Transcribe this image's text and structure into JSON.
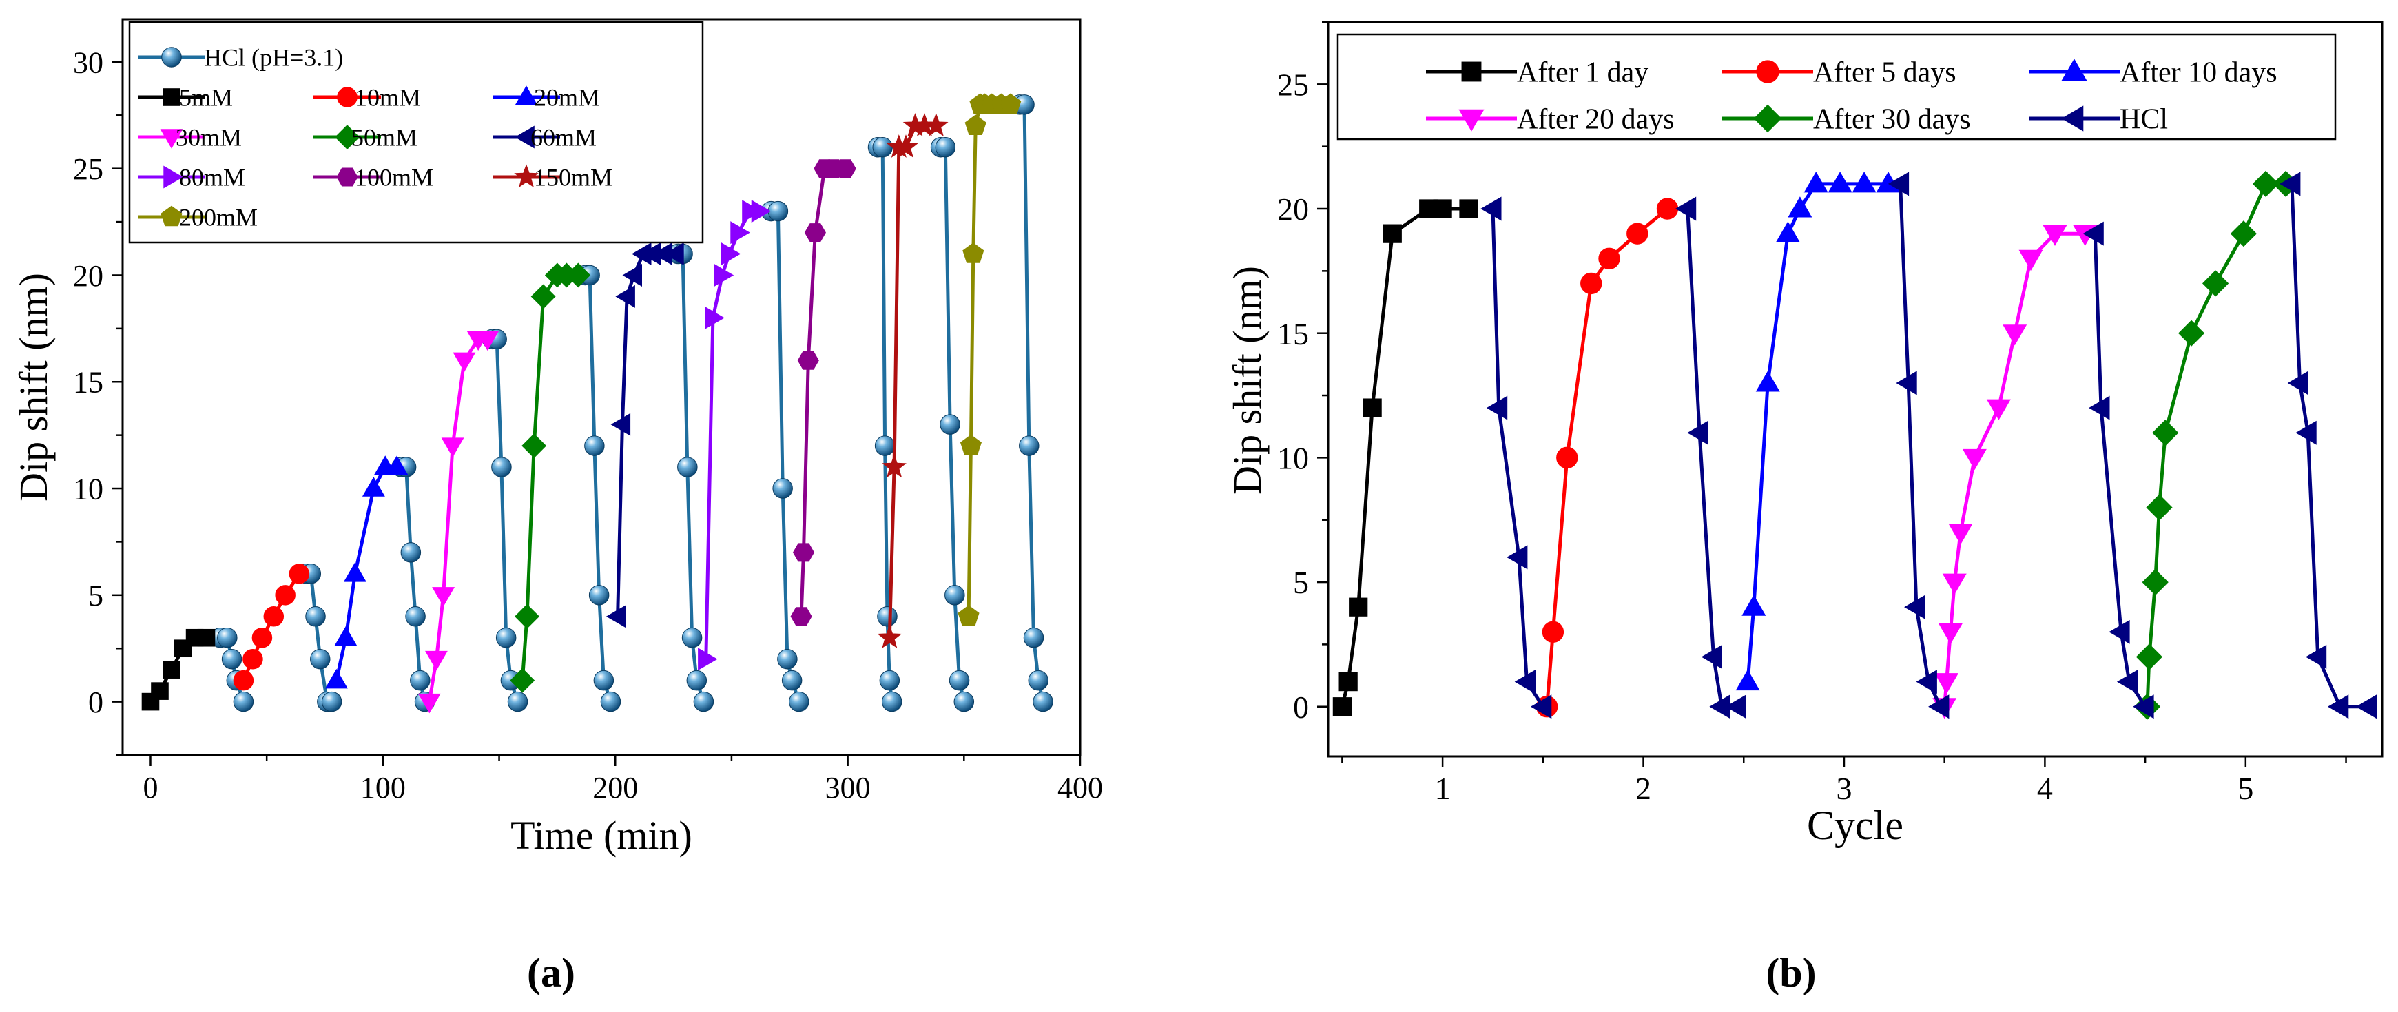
{
  "chart_data": [
    {
      "panel": "a",
      "type": "line",
      "panel_label": "(a)",
      "xlabel": "Time (min)",
      "ylabel": "Dip shift (nm)",
      "xlim": [
        -12,
        400
      ],
      "ylim": [
        -2.5,
        32
      ],
      "xticks": [
        0,
        100,
        200,
        300,
        400
      ],
      "yticks": [
        0,
        5,
        10,
        15,
        20,
        25,
        30
      ],
      "xticklabels": [
        "0",
        "100",
        "200",
        "300",
        "400"
      ],
      "yticklabels": [
        "0",
        "5",
        "10",
        "15",
        "20",
        "25",
        "30"
      ],
      "legend_position": "top-left",
      "series": [
        {
          "name": "HCl (pH=3.1)",
          "color": "#1f6e9e",
          "marker": "ball",
          "segments": [
            {
              "x": [
                30,
                33,
                35,
                37,
                40
              ],
              "y": [
                3,
                3,
                2,
                1,
                0
              ]
            },
            {
              "x": [
                67,
                69,
                71,
                73,
                76,
                78
              ],
              "y": [
                6,
                6,
                4,
                2,
                0,
                0
              ]
            },
            {
              "x": [
                108,
                110,
                112,
                114,
                116,
                118
              ],
              "y": [
                11,
                11,
                7,
                4,
                1,
                0
              ]
            },
            {
              "x": [
                147,
                149,
                151,
                153,
                155,
                158
              ],
              "y": [
                17,
                17,
                11,
                3,
                1,
                0
              ]
            },
            {
              "x": [
                187,
                189,
                191,
                193,
                195,
                198
              ],
              "y": [
                20,
                20,
                12,
                5,
                1,
                0
              ]
            },
            {
              "x": [
                227,
                229,
                231,
                233,
                235,
                238
              ],
              "y": [
                21,
                21,
                11,
                3,
                1,
                0
              ]
            },
            {
              "x": [
                267,
                270,
                272,
                274,
                276,
                279
              ],
              "y": [
                23,
                23,
                10,
                2,
                1,
                0
              ]
            },
            {
              "x": [
                313,
                315,
                316,
                317,
                318,
                319
              ],
              "y": [
                26,
                26,
                12,
                4,
                1,
                0
              ]
            },
            {
              "x": [
                340,
                342,
                344,
                346,
                348,
                350
              ],
              "y": [
                26,
                26,
                13,
                5,
                1,
                0
              ]
            },
            {
              "x": [
                374,
                376,
                378,
                380,
                382,
                384
              ],
              "y": [
                28,
                28,
                12,
                3,
                1,
                0
              ]
            }
          ]
        },
        {
          "name": "5mM",
          "color": "#000000",
          "marker": "square",
          "segments": [
            {
              "x": [
                0,
                4,
                9,
                14,
                19,
                24
              ],
              "y": [
                0,
                0.5,
                1.5,
                2.5,
                3,
                3
              ]
            }
          ]
        },
        {
          "name": "10mM",
          "color": "#ff0000",
          "marker": "circle",
          "segments": [
            {
              "x": [
                40,
                44,
                48,
                53,
                58,
                64
              ],
              "y": [
                1,
                2,
                3,
                4,
                5,
                6
              ]
            }
          ]
        },
        {
          "name": "20mM",
          "color": "#0000ff",
          "marker": "triangle-up",
          "segments": [
            {
              "x": [
                80,
                84,
                88,
                96,
                101,
                106
              ],
              "y": [
                1,
                3,
                6,
                10,
                11,
                11
              ]
            }
          ]
        },
        {
          "name": "30mM",
          "color": "#ff00ff",
          "marker": "triangle-down",
          "segments": [
            {
              "x": [
                120,
                123,
                126,
                130,
                135,
                141,
                145
              ],
              "y": [
                0,
                2,
                5,
                12,
                16,
                17,
                17
              ]
            }
          ]
        },
        {
          "name": "50mM",
          "color": "#008000",
          "marker": "diamond",
          "segments": [
            {
              "x": [
                160,
                162,
                165,
                169,
                175,
                179,
                184
              ],
              "y": [
                1,
                4,
                12,
                19,
                20,
                20,
                20
              ]
            }
          ]
        },
        {
          "name": "60mM",
          "color": "#000080",
          "marker": "triangle-left",
          "segments": [
            {
              "x": [
                201,
                203,
                205,
                208,
                212,
                216,
                221,
                226
              ],
              "y": [
                4,
                13,
                19,
                20,
                21,
                21,
                21,
                21
              ]
            }
          ]
        },
        {
          "name": "80mM",
          "color": "#8b00ff",
          "marker": "triangle-right",
          "segments": [
            {
              "x": [
                239,
                242,
                246,
                249,
                253,
                258,
                262
              ],
              "y": [
                2,
                18,
                20,
                21,
                22,
                23,
                23
              ]
            }
          ]
        },
        {
          "name": "100mM",
          "color": "#8b008b",
          "marker": "hexagon",
          "segments": [
            {
              "x": [
                280,
                281,
                283,
                286,
                290,
                294,
                299
              ],
              "y": [
                4,
                7,
                16,
                22,
                25,
                25,
                25
              ]
            }
          ]
        },
        {
          "name": "150mM",
          "color": "#b01010",
          "marker": "star",
          "segments": [
            {
              "x": [
                318,
                320,
                322,
                325,
                329,
                333,
                338
              ],
              "y": [
                3,
                11,
                26,
                26,
                27,
                27,
                27
              ]
            }
          ]
        },
        {
          "name": "200mM",
          "color": "#8b8b00",
          "marker": "pentagon",
          "segments": [
            {
              "x": [
                352,
                353,
                354,
                355,
                357,
                359,
                362,
                366,
                370
              ],
              "y": [
                4,
                12,
                21,
                27,
                28,
                28,
                28,
                28,
                28
              ]
            }
          ]
        }
      ]
    },
    {
      "panel": "b",
      "type": "line",
      "panel_label": "(b)",
      "xlabel": "Cycle",
      "ylabel": "Dip shift (nm)",
      "xlim": [
        0.43,
        5.68
      ],
      "ylim": [
        -2.0,
        27.5
      ],
      "xticks": [
        1,
        2,
        3,
        4,
        5
      ],
      "yticks": [
        0,
        5,
        10,
        15,
        20,
        25
      ],
      "xticklabels": [
        "1",
        "2",
        "3",
        "4",
        "5"
      ],
      "yticklabels": [
        "0",
        "5",
        "10",
        "15",
        "20",
        "25"
      ],
      "legend_position": "top",
      "series": [
        {
          "name": "After 1 day",
          "color": "#000000",
          "marker": "square",
          "segments": [
            {
              "x": [
                0.5,
                0.53,
                0.58,
                0.65,
                0.75,
                0.93,
                1.0,
                1.13
              ],
              "y": [
                0,
                1,
                4,
                12,
                19,
                20,
                20,
                20
              ]
            }
          ]
        },
        {
          "name": "After 5 days",
          "color": "#ff0000",
          "marker": "circle",
          "segments": [
            {
              "x": [
                1.52,
                1.55,
                1.62,
                1.74,
                1.83,
                1.97,
                2.12
              ],
              "y": [
                0,
                3,
                10,
                17,
                18,
                19,
                20
              ]
            }
          ]
        },
        {
          "name": "After 10 days",
          "color": "#0000ff",
          "marker": "triangle-up",
          "segments": [
            {
              "x": [
                2.52,
                2.55,
                2.62,
                2.72,
                2.78,
                2.86,
                2.98,
                3.1,
                3.22
              ],
              "y": [
                1,
                4,
                13,
                19,
                20,
                21,
                21,
                21,
                21
              ]
            }
          ]
        },
        {
          "name": "After 20 days",
          "color": "#ff00ff",
          "marker": "triangle-down",
          "segments": [
            {
              "x": [
                3.5,
                3.51,
                3.53,
                3.55,
                3.58,
                3.65,
                3.77,
                3.85,
                3.93,
                4.05,
                4.2
              ],
              "y": [
                0,
                1,
                3,
                5,
                7,
                10,
                12,
                15,
                18,
                19,
                19
              ]
            }
          ]
        },
        {
          "name": "After 30 days",
          "color": "#008000",
          "marker": "diamond",
          "segments": [
            {
              "x": [
                4.51,
                4.52,
                4.55,
                4.57,
                4.6,
                4.73,
                4.85,
                4.99,
                5.1,
                5.2
              ],
              "y": [
                0,
                2,
                5,
                8,
                11,
                15,
                17,
                19,
                21,
                21
              ]
            }
          ]
        },
        {
          "name": "HCl",
          "color": "#000080",
          "marker": "triangle-left",
          "segments": [
            {
              "x": [
                1.25,
                1.28,
                1.38,
                1.42,
                1.5
              ],
              "y": [
                20,
                12,
                6,
                1,
                0
              ]
            },
            {
              "x": [
                2.22,
                2.28,
                2.35,
                2.39,
                2.47
              ],
              "y": [
                20,
                11,
                2,
                0,
                0
              ]
            },
            {
              "x": [
                3.28,
                3.32,
                3.36,
                3.42,
                3.48
              ],
              "y": [
                21,
                13,
                4,
                1,
                0
              ]
            },
            {
              "x": [
                4.25,
                4.28,
                4.38,
                4.42,
                4.5
              ],
              "y": [
                19,
                12,
                3,
                1,
                0
              ]
            },
            {
              "x": [
                5.23,
                5.27,
                5.31,
                5.36,
                5.47,
                5.61
              ],
              "y": [
                21,
                13,
                11,
                2,
                0,
                0
              ]
            }
          ]
        }
      ]
    }
  ]
}
